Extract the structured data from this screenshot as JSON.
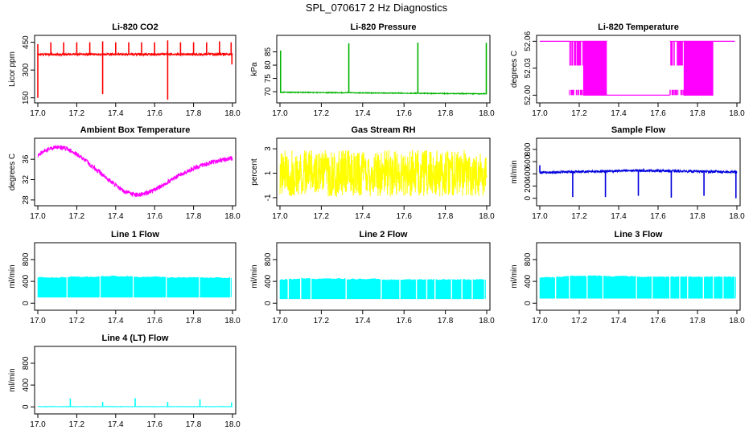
{
  "figure": {
    "title": "SPL_070617  2 Hz Diagnostics"
  },
  "chart_data": [
    {
      "id": "co2",
      "type": "line",
      "title": "Li-820 CO2",
      "xlabel": "",
      "ylabel": "Licor ppm",
      "color": "#ff0000",
      "style": "noisy_band",
      "xlim": [
        17.0,
        18.0
      ],
      "ylim": [
        140,
        470
      ],
      "xticks": [
        17.0,
        17.2,
        17.4,
        17.6,
        17.8,
        18.0
      ],
      "xtick_labels": [
        "17.0",
        "17.2",
        "17.4",
        "17.6",
        "17.8",
        "18.0"
      ],
      "yticks": [
        150,
        300,
        450
      ],
      "ytick_labels": [
        "150",
        "300",
        "450"
      ],
      "baseline": {
        "x": [
          17.0,
          18.0
        ],
        "y": [
          385,
          385
        ]
      },
      "noise": 6,
      "spikes": [
        {
          "x": 17.0,
          "y": 440
        },
        {
          "x": 17.0,
          "y": 150
        },
        {
          "x": 17.067,
          "y": 450
        },
        {
          "x": 17.133,
          "y": 450
        },
        {
          "x": 17.2,
          "y": 450
        },
        {
          "x": 17.267,
          "y": 450
        },
        {
          "x": 17.333,
          "y": 455
        },
        {
          "x": 17.333,
          "y": 170
        },
        {
          "x": 17.4,
          "y": 450
        },
        {
          "x": 17.467,
          "y": 450
        },
        {
          "x": 17.533,
          "y": 450
        },
        {
          "x": 17.6,
          "y": 450
        },
        {
          "x": 17.667,
          "y": 460
        },
        {
          "x": 17.667,
          "y": 140
        },
        {
          "x": 17.733,
          "y": 450
        },
        {
          "x": 17.8,
          "y": 450
        },
        {
          "x": 17.867,
          "y": 450
        },
        {
          "x": 17.933,
          "y": 455
        },
        {
          "x": 17.993,
          "y": 450
        },
        {
          "x": 17.997,
          "y": 330
        }
      ]
    },
    {
      "id": "pressure",
      "type": "line",
      "title": "Li-820 Pressure",
      "xlabel": "",
      "ylabel": "kPa",
      "color": "#00b400",
      "style": "noisy_band",
      "xlim": [
        17.0,
        18.0
      ],
      "ylim": [
        67,
        90
      ],
      "xticks": [
        17.0,
        17.2,
        17.4,
        17.6,
        17.8,
        18.0
      ],
      "xtick_labels": [
        "17.0",
        "17.2",
        "17.4",
        "17.6",
        "17.8",
        "18.0"
      ],
      "yticks": [
        70,
        75,
        80,
        85
      ],
      "ytick_labels": [
        "70",
        "75",
        "80",
        "85"
      ],
      "baseline": {
        "x": [
          17.0,
          18.0
        ],
        "y": [
          69.8,
          69.2
        ]
      },
      "noise": 0.15,
      "spikes": [
        {
          "x": 17.003,
          "y": 85.5
        },
        {
          "x": 17.333,
          "y": 88.2
        },
        {
          "x": 17.667,
          "y": 88.5
        },
        {
          "x": 17.998,
          "y": 88.4
        }
      ]
    },
    {
      "id": "temperature",
      "type": "line",
      "title": "Li-820 Temperature",
      "xlabel": "",
      "ylabel": "degrees C",
      "color": "#ff00ff",
      "style": "quantized",
      "xlim": [
        17.0,
        18.0
      ],
      "ylim": [
        51.995,
        52.063
      ],
      "xticks": [
        17.0,
        17.2,
        17.4,
        17.6,
        17.8,
        18.0
      ],
      "xtick_labels": [
        "17.0",
        "17.2",
        "17.4",
        "17.6",
        "17.8",
        "18.0"
      ],
      "yticks": [
        52.0,
        52.03,
        52.06
      ],
      "ytick_labels": [
        "52.00",
        "52.03",
        "52.06"
      ],
      "levels": [
        52.0,
        52.06
      ],
      "transitions": [
        {
          "x": [
            17.0,
            17.15
          ],
          "level": "high"
        },
        {
          "x": [
            17.15,
            17.22
          ],
          "level": "dither"
        },
        {
          "x": [
            17.22,
            17.34
          ],
          "level": "low_band"
        },
        {
          "x": [
            17.34,
            17.66
          ],
          "level": "low"
        },
        {
          "x": [
            17.66,
            17.73
          ],
          "level": "dither"
        },
        {
          "x": [
            17.73,
            17.88
          ],
          "level": "high_band"
        },
        {
          "x": [
            17.88,
            17.99
          ],
          "level": "high"
        }
      ]
    },
    {
      "id": "ambient",
      "type": "line",
      "title": "Ambient Box Temperature",
      "xlabel": "",
      "ylabel": "degrees C",
      "color": "#ff00ff",
      "style": "noisy_band",
      "xlim": [
        17.0,
        18.0
      ],
      "ylim": [
        27.5,
        39.5
      ],
      "xticks": [
        17.0,
        17.2,
        17.4,
        17.6,
        17.8,
        18.0
      ],
      "xtick_labels": [
        "17.0",
        "17.2",
        "17.4",
        "17.6",
        "17.8",
        "18.0"
      ],
      "yticks": [
        28,
        32,
        36
      ],
      "ytick_labels": [
        "28",
        "32",
        "36"
      ],
      "baseline": {
        "x": [
          17.0,
          17.05,
          17.1,
          17.15,
          17.2,
          17.25,
          17.3,
          17.35,
          17.4,
          17.45,
          17.5,
          17.55,
          17.6,
          17.65,
          17.7,
          17.75,
          17.8,
          17.85,
          17.9,
          17.95,
          18.0
        ],
        "y": [
          36.8,
          37.9,
          38.4,
          38.1,
          37.0,
          35.6,
          34.0,
          32.4,
          30.9,
          29.6,
          29.0,
          29.2,
          30.0,
          31.1,
          32.3,
          33.3,
          34.2,
          34.9,
          35.4,
          35.9,
          36.2
        ]
      },
      "noise": 0.45
    },
    {
      "id": "rh",
      "type": "line",
      "title": "Gas Stream RH",
      "xlabel": "",
      "ylabel": "percent",
      "color": "#ffff00",
      "style": "noisy_band",
      "xlim": [
        17.0,
        18.0
      ],
      "ylim": [
        -1.4,
        3.6
      ],
      "xticks": [
        17.0,
        17.2,
        17.4,
        17.6,
        17.8,
        18.0
      ],
      "xtick_labels": [
        "17.0",
        "17.2",
        "17.4",
        "17.6",
        "17.8",
        "18.0"
      ],
      "yticks": [
        -1,
        1,
        3
      ],
      "ytick_labels": [
        "-1",
        "1",
        "3"
      ],
      "baseline": {
        "x": [
          17.0,
          18.0
        ],
        "y": [
          1.0,
          1.0
        ]
      },
      "noise": 1.9
    },
    {
      "id": "sample_flow",
      "type": "line",
      "title": "Sample Flow",
      "xlabel": "",
      "ylabel": "ml/min",
      "color": "#0000dd",
      "style": "noisy_band",
      "xlim": [
        17.0,
        18.0
      ],
      "ylim": [
        -70,
        930
      ],
      "xticks": [
        17.0,
        17.2,
        17.4,
        17.6,
        17.8,
        18.0
      ],
      "xtick_labels": [
        "17.0",
        "17.2",
        "17.4",
        "17.6",
        "17.8",
        "18.0"
      ],
      "yticks": [
        0,
        200,
        400,
        600,
        800
      ],
      "ytick_labels": [
        "0",
        "200",
        "400",
        "600",
        "800"
      ],
      "baseline": {
        "x": [
          17.0,
          17.5,
          18.0
        ],
        "y": [
          420,
          455,
          430
        ]
      },
      "noise": 20,
      "spikes": [
        {
          "x": 17.0,
          "y": 540
        },
        {
          "x": 17.167,
          "y": 20
        },
        {
          "x": 17.333,
          "y": 20
        },
        {
          "x": 17.5,
          "y": 40
        },
        {
          "x": 17.667,
          "y": 10
        },
        {
          "x": 17.833,
          "y": 40
        },
        {
          "x": 17.995,
          "y": 0
        }
      ]
    },
    {
      "id": "line1",
      "type": "line",
      "title": "Line 1 Flow",
      "xlabel": "",
      "ylabel": "ml/min",
      "color": "#00ffff",
      "style": "block_fill",
      "xlim": [
        17.0,
        18.0
      ],
      "ylim": [
        -70,
        1050
      ],
      "xticks": [
        17.0,
        17.2,
        17.4,
        17.6,
        17.8,
        18.0
      ],
      "xtick_labels": [
        "17.0",
        "17.2",
        "17.4",
        "17.6",
        "17.8",
        "18.0"
      ],
      "yticks": [
        0,
        400,
        800
      ],
      "ytick_labels": [
        "0",
        "400",
        "800"
      ],
      "band_low": 110,
      "band_high": [
        470,
        480,
        490,
        480,
        470,
        465
      ],
      "gaps": [
        17.15,
        17.32,
        17.49,
        17.66,
        17.83,
        17.99
      ]
    },
    {
      "id": "line2",
      "type": "line",
      "title": "Line 2 Flow",
      "xlabel": "",
      "ylabel": "ml/min",
      "color": "#00ffff",
      "style": "block_fill",
      "xlim": [
        17.0,
        18.0
      ],
      "ylim": [
        -70,
        1050
      ],
      "xticks": [
        17.0,
        17.2,
        17.4,
        17.6,
        17.8,
        18.0
      ],
      "xtick_labels": [
        "17.0",
        "17.2",
        "17.4",
        "17.6",
        "17.8",
        "18.0"
      ],
      "yticks": [
        0,
        400,
        800
      ],
      "ytick_labels": [
        "0",
        "400",
        "800"
      ],
      "band_low": 80,
      "band_high": [
        430,
        440,
        450,
        445,
        440,
        430
      ],
      "gaps": [
        17.04,
        17.1,
        17.15,
        17.32,
        17.49,
        17.58,
        17.66,
        17.71,
        17.75,
        17.83,
        17.88,
        17.93,
        17.99
      ]
    },
    {
      "id": "line3",
      "type": "line",
      "title": "Line 3 Flow",
      "xlabel": "",
      "ylabel": "ml/min",
      "color": "#00ffff",
      "style": "block_fill",
      "xlim": [
        17.0,
        18.0
      ],
      "ylim": [
        -70,
        1050
      ],
      "xticks": [
        17.0,
        17.2,
        17.4,
        17.6,
        17.8,
        18.0
      ],
      "xtick_labels": [
        "17.0",
        "17.2",
        "17.4",
        "17.6",
        "17.8",
        "18.0"
      ],
      "yticks": [
        0,
        400,
        800
      ],
      "ytick_labels": [
        "0",
        "400",
        "800"
      ],
      "band_low": 90,
      "band_high": [
        470,
        485,
        495,
        500,
        490,
        480
      ],
      "gaps": [
        17.08,
        17.15,
        17.24,
        17.32,
        17.49,
        17.57,
        17.66,
        17.71,
        17.75,
        17.83,
        17.88,
        17.93,
        17.99
      ]
    },
    {
      "id": "line4",
      "type": "line",
      "title": "Line 4 (LT) Flow",
      "xlabel": "",
      "ylabel": "ml/min",
      "color": "#00ffff",
      "style": "noisy_band",
      "xlim": [
        17.0,
        18.0
      ],
      "ylim": [
        -70,
        1050
      ],
      "xticks": [
        17.0,
        17.2,
        17.4,
        17.6,
        17.8,
        18.0
      ],
      "xtick_labels": [
        "17.0",
        "17.2",
        "17.4",
        "17.6",
        "17.8",
        "18.0"
      ],
      "yticks": [
        0,
        400,
        800
      ],
      "ytick_labels": [
        "0",
        "400",
        "800"
      ],
      "baseline": {
        "x": [
          17.0,
          18.0
        ],
        "y": [
          5,
          5
        ]
      },
      "noise": 3,
      "spikes": [
        {
          "x": 17.167,
          "y": 150
        },
        {
          "x": 17.333,
          "y": 90
        },
        {
          "x": 17.5,
          "y": 160
        },
        {
          "x": 17.667,
          "y": 90
        },
        {
          "x": 17.833,
          "y": 140
        },
        {
          "x": 17.995,
          "y": 80
        }
      ]
    }
  ]
}
